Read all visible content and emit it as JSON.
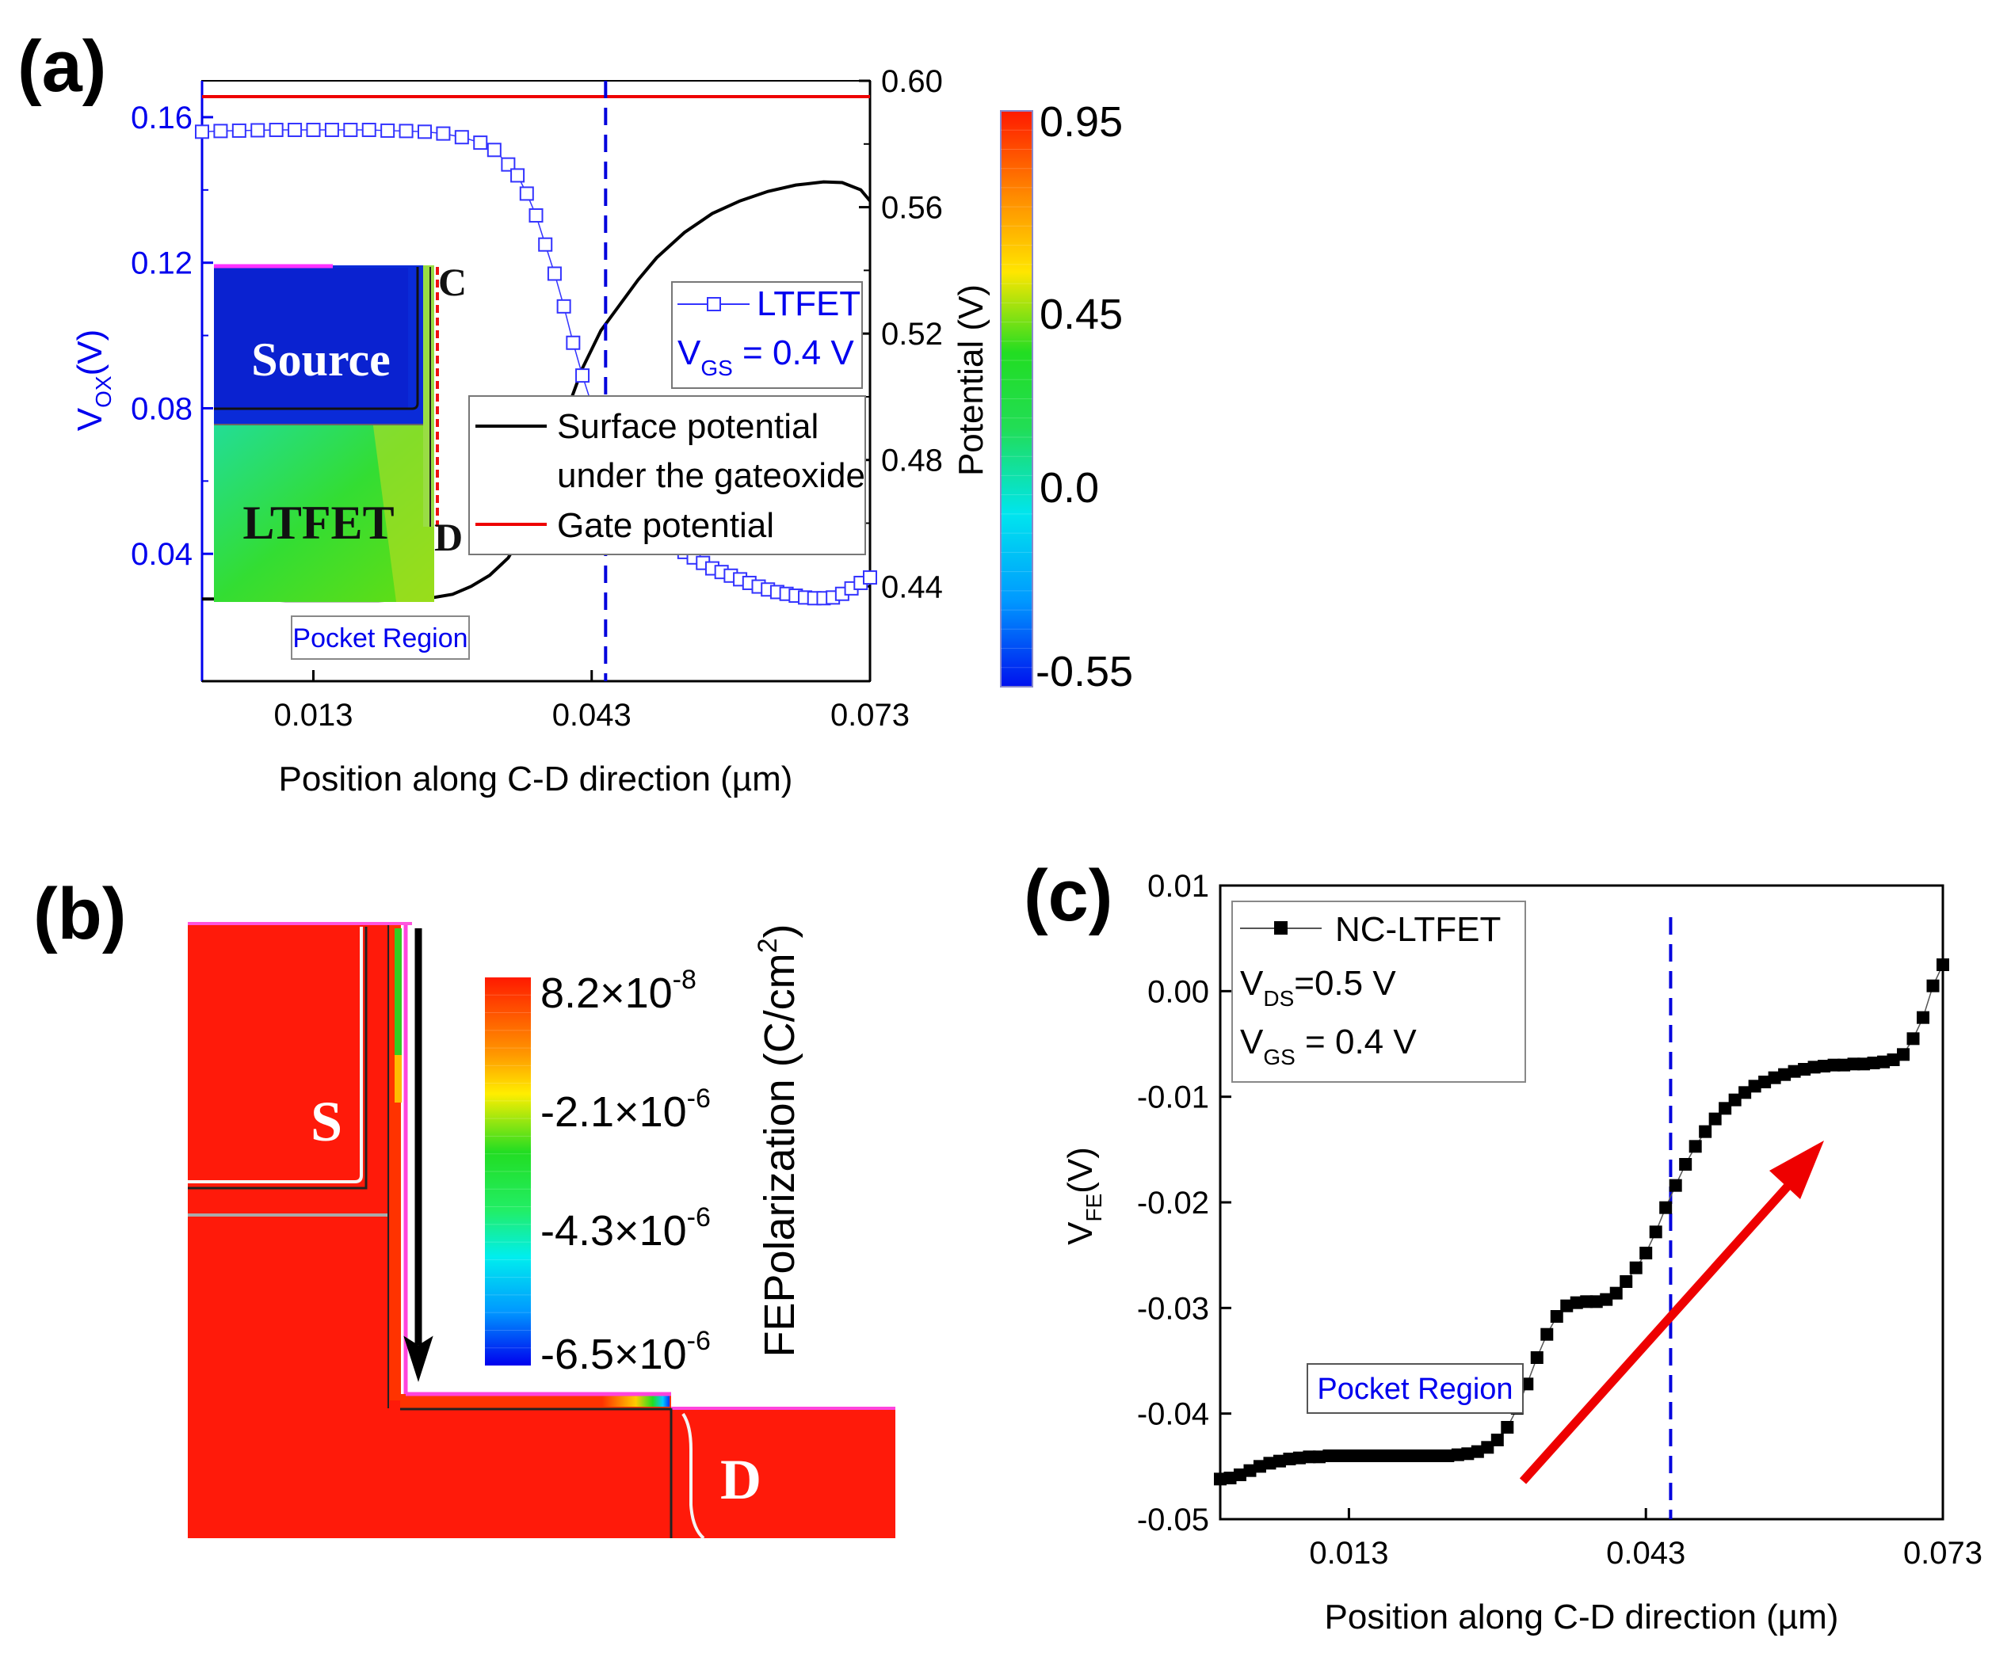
{
  "panels": {
    "a": {
      "label": "(a)"
    },
    "b": {
      "label": "(b)"
    },
    "c": {
      "label": "(c)"
    }
  },
  "colors": {
    "vox_axis": "#0000ee",
    "vox_series": "#3333ff",
    "surface": "#000000",
    "gate": "#ee0000",
    "dashed": "#0000dd",
    "arrow": "#ee0000",
    "device_red": "#ff1a0a"
  },
  "chart_data": [
    {
      "id": "a",
      "type": "line",
      "xlabel": "Position along C-D direction (µm)",
      "xticks": [
        "0.013",
        "0.043",
        "0.073"
      ],
      "xtick_values": [
        0.013,
        0.043,
        0.073
      ],
      "xlim": [
        0.001,
        0.073
      ],
      "left_axis": {
        "label_main": "V",
        "label_sub": "OX",
        "label_tail": "(V)",
        "lim": [
          0.005,
          0.17
        ],
        "ticks": [
          "0.04",
          "0.08",
          "0.12",
          "0.16"
        ],
        "tick_values": [
          0.04,
          0.08,
          0.12,
          0.16
        ]
      },
      "right_axis": {
        "label": "Potential (V)",
        "lim": [
          0.41,
          0.6
        ],
        "ticks": [
          "0.44",
          "0.48",
          "0.52",
          "0.56",
          "0.60"
        ],
        "tick_values": [
          0.44,
          0.48,
          0.52,
          0.56,
          0.6
        ]
      },
      "dashed_line_x": 0.0445,
      "series": [
        {
          "name": "LTFET",
          "axis": "left",
          "marker": "open-square",
          "x": [
            0.001,
            0.003,
            0.005,
            0.007,
            0.009,
            0.011,
            0.013,
            0.015,
            0.017,
            0.019,
            0.021,
            0.023,
            0.025,
            0.027,
            0.029,
            0.031,
            0.0325,
            0.034,
            0.035,
            0.036,
            0.037,
            0.038,
            0.039,
            0.04,
            0.041,
            0.042,
            0.043,
            0.044,
            0.045,
            0.046,
            0.047,
            0.048,
            0.049,
            0.05,
            0.051,
            0.052,
            0.053,
            0.054,
            0.055,
            0.056,
            0.057,
            0.058,
            0.059,
            0.06,
            0.061,
            0.062,
            0.063,
            0.064,
            0.065,
            0.066,
            0.067,
            0.068,
            0.069,
            0.07,
            0.071,
            0.072,
            0.073
          ],
          "y": [
            0.156,
            0.1562,
            0.1563,
            0.1564,
            0.1565,
            0.1565,
            0.1565,
            0.1565,
            0.1565,
            0.1565,
            0.1563,
            0.1562,
            0.156,
            0.1555,
            0.1545,
            0.153,
            0.151,
            0.147,
            0.144,
            0.139,
            0.133,
            0.125,
            0.117,
            0.108,
            0.098,
            0.089,
            0.081,
            0.073,
            0.066,
            0.06,
            0.055,
            0.051,
            0.048,
            0.0455,
            0.0435,
            0.042,
            0.0405,
            0.039,
            0.0375,
            0.036,
            0.035,
            0.034,
            0.033,
            0.032,
            0.031,
            0.0302,
            0.0295,
            0.029,
            0.0285,
            0.028,
            0.0278,
            0.0278,
            0.028,
            0.029,
            0.0305,
            0.032,
            0.0335
          ]
        },
        {
          "name": "Surface potential under the gateoxide",
          "axis": "right",
          "x": [
            0.001,
            0.005,
            0.01,
            0.015,
            0.02,
            0.025,
            0.028,
            0.03,
            0.032,
            0.034,
            0.036,
            0.038,
            0.04,
            0.042,
            0.044,
            0.046,
            0.048,
            0.05,
            0.053,
            0.056,
            0.059,
            0.062,
            0.065,
            0.068,
            0.07,
            0.072,
            0.073
          ],
          "y": [
            0.436,
            0.436,
            0.4355,
            0.4355,
            0.4355,
            0.436,
            0.4375,
            0.44,
            0.4435,
            0.449,
            0.459,
            0.475,
            0.493,
            0.509,
            0.521,
            0.529,
            0.537,
            0.544,
            0.552,
            0.558,
            0.562,
            0.565,
            0.567,
            0.568,
            0.5678,
            0.5655,
            0.562
          ]
        },
        {
          "name": "Gate potential",
          "axis": "right",
          "x": [
            0.001,
            0.073
          ],
          "y": [
            0.595,
            0.595
          ]
        }
      ],
      "legend_top": {
        "name": "LTFET",
        "vgs_main": "V",
        "vgs_sub": "GS",
        "vgs_tail": " = 0.4 V"
      },
      "legend_bottom": {
        "line1": "Surface potential",
        "line2": "under the gateoxide",
        "line3": "Gate potential"
      },
      "colorbar": {
        "ticks": [
          "0.95",
          "0.45",
          "0.0",
          "-0.55"
        ]
      },
      "inset": {
        "source": "Source",
        "ltfet": "LTFET",
        "c": "C",
        "d": "D",
        "pocket": "Pocket Region"
      }
    },
    {
      "id": "b",
      "type": "heatmap",
      "colorbar_label": "FEPolarization (C/cm",
      "colorbar_label_sup": "2",
      "colorbar_label_end": ")",
      "colorbar_ticks": [
        {
          "mant": "8.2×10",
          "exp": "-8"
        },
        {
          "mant": "-2.1×10",
          "exp": "-6"
        },
        {
          "mant": "-4.3×10",
          "exp": "-6"
        },
        {
          "mant": "-6.5×10",
          "exp": "-6"
        }
      ],
      "s_label": "S",
      "d_label": "D"
    },
    {
      "id": "c",
      "type": "line",
      "xlabel": "Position along C-D direction (µm)",
      "ylabel_main": "V",
      "ylabel_sub": "FE",
      "ylabel_tail": "(V)",
      "xticks": [
        "0.013",
        "0.043",
        "0.073"
      ],
      "xtick_values": [
        0.013,
        0.043,
        0.073
      ],
      "xlim": [
        0.0,
        0.073
      ],
      "ylim": [
        -0.05,
        0.01
      ],
      "yticks": [
        "0.01",
        "0.00",
        "-0.01",
        "-0.02",
        "-0.03",
        "-0.04",
        "-0.05"
      ],
      "ytick_values": [
        0.01,
        0.0,
        -0.01,
        -0.02,
        -0.03,
        -0.04,
        -0.05
      ],
      "dashed_line_x": 0.0455,
      "legend": {
        "name": "NC-LTFET",
        "vds_main": "V",
        "vds_sub": "DS",
        "vds_tail": "=0.5 V",
        "vgs_main": "V",
        "vgs_sub": "GS",
        "vgs_tail": " = 0.4 V"
      },
      "pocket_label": "Pocket Region",
      "series": [
        {
          "name": "NC-LTFET",
          "marker": "filled-square",
          "x": [
            0.0,
            0.001,
            0.002,
            0.003,
            0.004,
            0.005,
            0.006,
            0.007,
            0.008,
            0.009,
            0.01,
            0.011,
            0.012,
            0.013,
            0.014,
            0.015,
            0.016,
            0.017,
            0.018,
            0.019,
            0.02,
            0.021,
            0.022,
            0.023,
            0.024,
            0.025,
            0.026,
            0.027,
            0.028,
            0.029,
            0.03,
            0.031,
            0.032,
            0.033,
            0.034,
            0.035,
            0.036,
            0.037,
            0.038,
            0.039,
            0.04,
            0.041,
            0.042,
            0.043,
            0.044,
            0.045,
            0.046,
            0.047,
            0.048,
            0.049,
            0.05,
            0.051,
            0.052,
            0.053,
            0.054,
            0.055,
            0.056,
            0.057,
            0.058,
            0.059,
            0.06,
            0.061,
            0.062,
            0.063,
            0.064,
            0.065,
            0.066,
            0.067,
            0.068,
            0.069,
            0.07,
            0.071,
            0.072,
            0.073
          ],
          "y": [
            -0.0462,
            -0.0461,
            -0.0458,
            -0.0454,
            -0.045,
            -0.0447,
            -0.0445,
            -0.0443,
            -0.0442,
            -0.0441,
            -0.0441,
            -0.044,
            -0.044,
            -0.044,
            -0.044,
            -0.044,
            -0.044,
            -0.044,
            -0.044,
            -0.044,
            -0.044,
            -0.044,
            -0.044,
            -0.044,
            -0.0439,
            -0.0438,
            -0.0436,
            -0.0432,
            -0.0425,
            -0.0413,
            -0.0395,
            -0.0372,
            -0.0347,
            -0.0325,
            -0.0308,
            -0.0298,
            -0.0295,
            -0.0294,
            -0.0294,
            -0.0292,
            -0.0286,
            -0.0275,
            -0.0262,
            -0.0248,
            -0.0228,
            -0.0205,
            -0.0184,
            -0.0164,
            -0.0147,
            -0.0133,
            -0.0121,
            -0.0111,
            -0.0103,
            -0.0096,
            -0.009,
            -0.0086,
            -0.0082,
            -0.0079,
            -0.0076,
            -0.0074,
            -0.0072,
            -0.0071,
            -0.007,
            -0.007,
            -0.0069,
            -0.0069,
            -0.0068,
            -0.0067,
            -0.0065,
            -0.006,
            -0.0045,
            -0.0025,
            0.0005,
            0.0025
          ]
        }
      ]
    }
  ]
}
